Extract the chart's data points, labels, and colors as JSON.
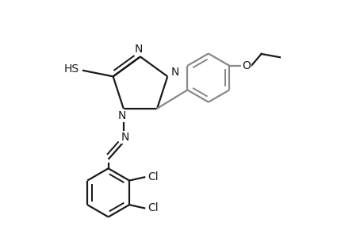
{
  "bg": "#ffffff",
  "lc": "#1a1a1a",
  "gc": "#888888",
  "lw": 1.6,
  "fs": 10,
  "dpi": 100,
  "fig_w": 4.6,
  "fig_h": 3.0,
  "xlim": [
    -1.0,
    5.5
  ],
  "ylim": [
    -4.5,
    2.5
  ]
}
